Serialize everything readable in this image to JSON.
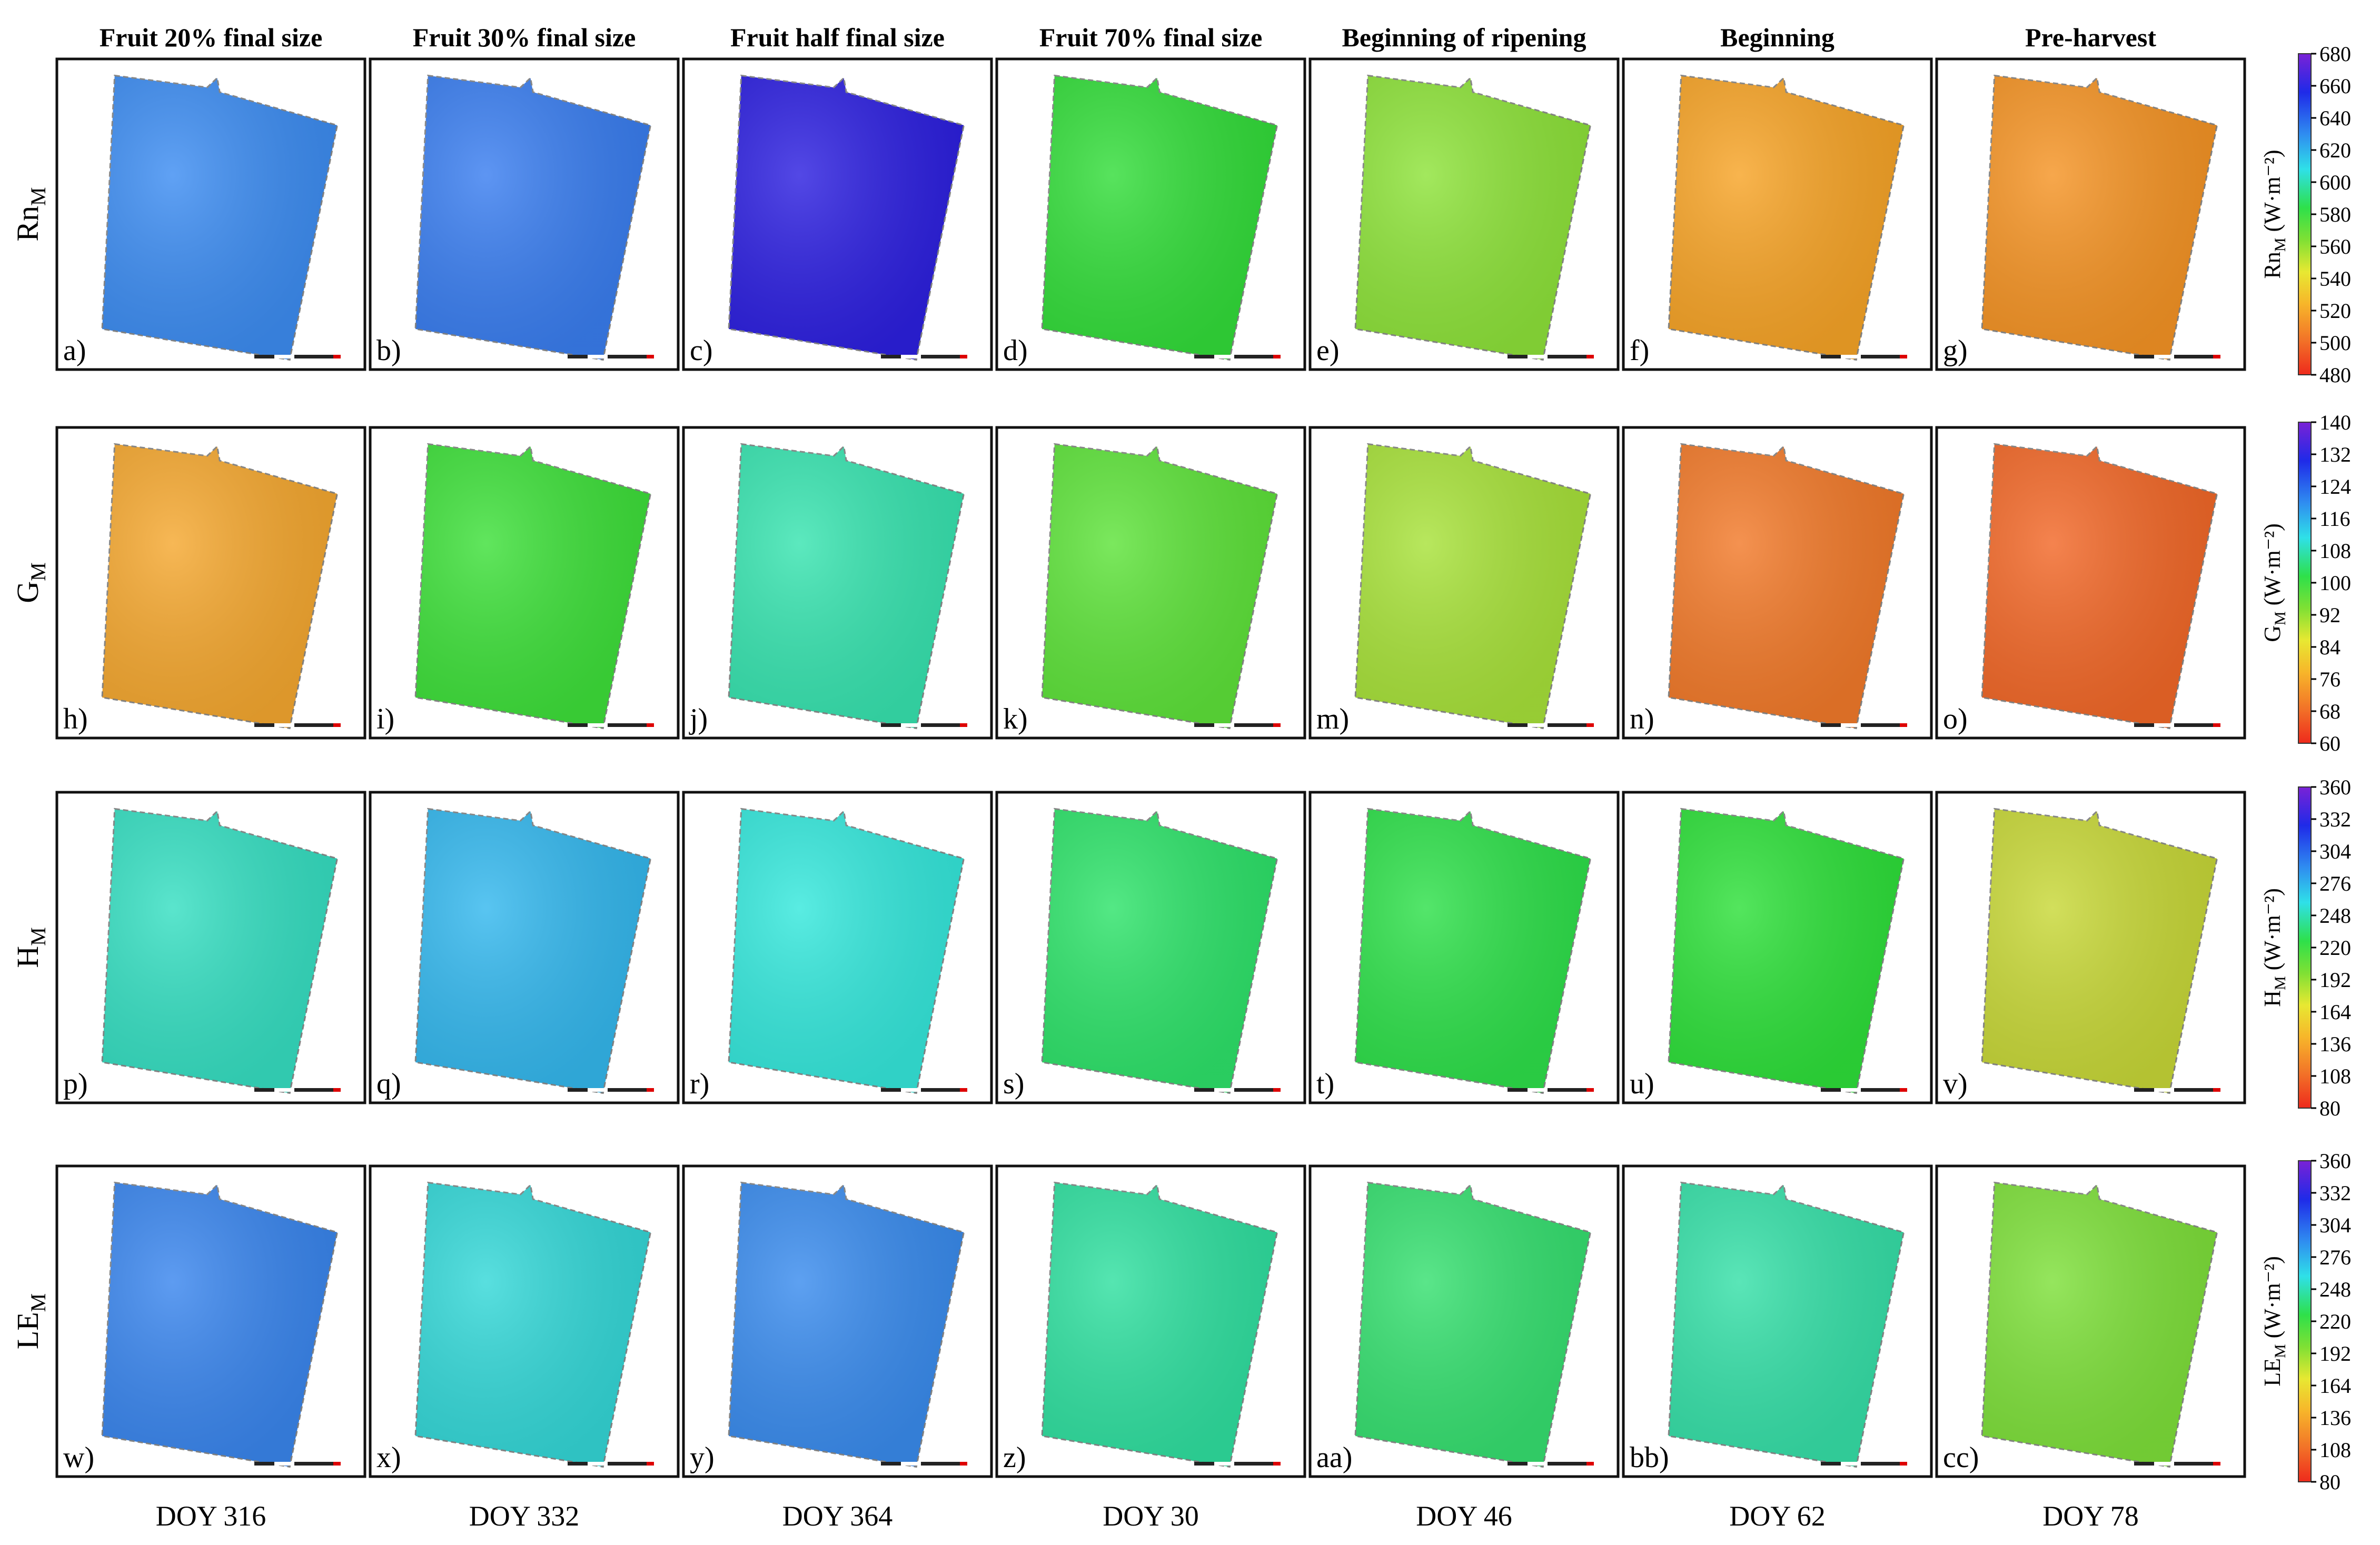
{
  "columns": [
    {
      "stage": "Fruit 20% final size",
      "doy": "DOY 316"
    },
    {
      "stage": "Fruit 30% final size",
      "doy": "DOY 332"
    },
    {
      "stage": "Fruit half final size",
      "doy": "DOY 364"
    },
    {
      "stage": "Fruit 70% final size",
      "doy": "DOY 30"
    },
    {
      "stage": "Beginning of ripening",
      "doy": "DOY 46"
    },
    {
      "stage": "Beginning",
      "doy": "DOY 62"
    },
    {
      "stage": "Pre-harvest",
      "doy": "DOY 78"
    }
  ],
  "rows": [
    {
      "main": "Rn",
      "sub": "M",
      "unit": "(W·m⁻²)",
      "ticks": [
        "680",
        "660",
        "640",
        "620",
        "600",
        "580",
        "560",
        "540",
        "520",
        "500",
        "480"
      ],
      "panels": [
        {
          "label": "a)",
          "color": "#3d8df2"
        },
        {
          "label": "b)",
          "color": "#3a7ef0"
        },
        {
          "label": "c)",
          "color": "#2d20e0"
        },
        {
          "label": "d)",
          "color": "#33dd3a"
        },
        {
          "label": "e)",
          "color": "#8ee33a"
        },
        {
          "label": "f)",
          "color": "#f7a427"
        },
        {
          "label": "g)",
          "color": "#f59425"
        }
      ]
    },
    {
      "main": "G",
      "sub": "M",
      "unit": "(W·m⁻²)",
      "ticks": [
        "140",
        "132",
        "124",
        "116",
        "108",
        "100",
        "92",
        "84",
        "76",
        "68",
        "60"
      ],
      "panels": [
        {
          "label": "h)",
          "color": "#f5a830"
        },
        {
          "label": "i)",
          "color": "#3ee03a"
        },
        {
          "label": "j)",
          "color": "#38e4b0"
        },
        {
          "label": "k)",
          "color": "#5ee33a"
        },
        {
          "label": "m)",
          "color": "#a8e23a"
        },
        {
          "label": "n)",
          "color": "#f27a2a"
        },
        {
          "label": "o)",
          "color": "#f26828"
        }
      ]
    },
    {
      "main": "H",
      "sub": "M",
      "unit": "(W·m⁻²)",
      "ticks": [
        "360",
        "332",
        "304",
        "276",
        "248",
        "220",
        "192",
        "164",
        "136",
        "108",
        "80"
      ],
      "panels": [
        {
          "label": "p)",
          "color": "#36dfc2"
        },
        {
          "label": "q)",
          "color": "#34b8ee"
        },
        {
          "label": "r)",
          "color": "#35e8dc"
        },
        {
          "label": "s)",
          "color": "#2ee36a"
        },
        {
          "label": "t)",
          "color": "#2ee04a"
        },
        {
          "label": "u)",
          "color": "#2ee03a"
        },
        {
          "label": "v)",
          "color": "#c8d838"
        }
      ]
    },
    {
      "main": "LE",
      "sub": "M",
      "unit": "(W·m⁻²)",
      "ticks": [
        "360",
        "332",
        "304",
        "276",
        "248",
        "220",
        "192",
        "164",
        "136",
        "108",
        "80"
      ],
      "panels": [
        {
          "label": "w)",
          "color": "#3a86ee"
        },
        {
          "label": "x)",
          "color": "#34d8d8"
        },
        {
          "label": "y)",
          "color": "#3a8cee"
        },
        {
          "label": "z)",
          "color": "#30e0a0"
        },
        {
          "label": "aa)",
          "color": "#36e070"
        },
        {
          "label": "bb)",
          "color": "#36e0a8"
        },
        {
          "label": "cc)",
          "color": "#7ee03a"
        }
      ]
    }
  ],
  "colors": {
    "scale": [
      "#7a22d6",
      "#1f2ae8",
      "#2f8cf0",
      "#2fe0e8",
      "#2ee04a",
      "#7fe034",
      "#e8e832",
      "#f7b52a",
      "#f27428",
      "#ee2a1c"
    ]
  }
}
